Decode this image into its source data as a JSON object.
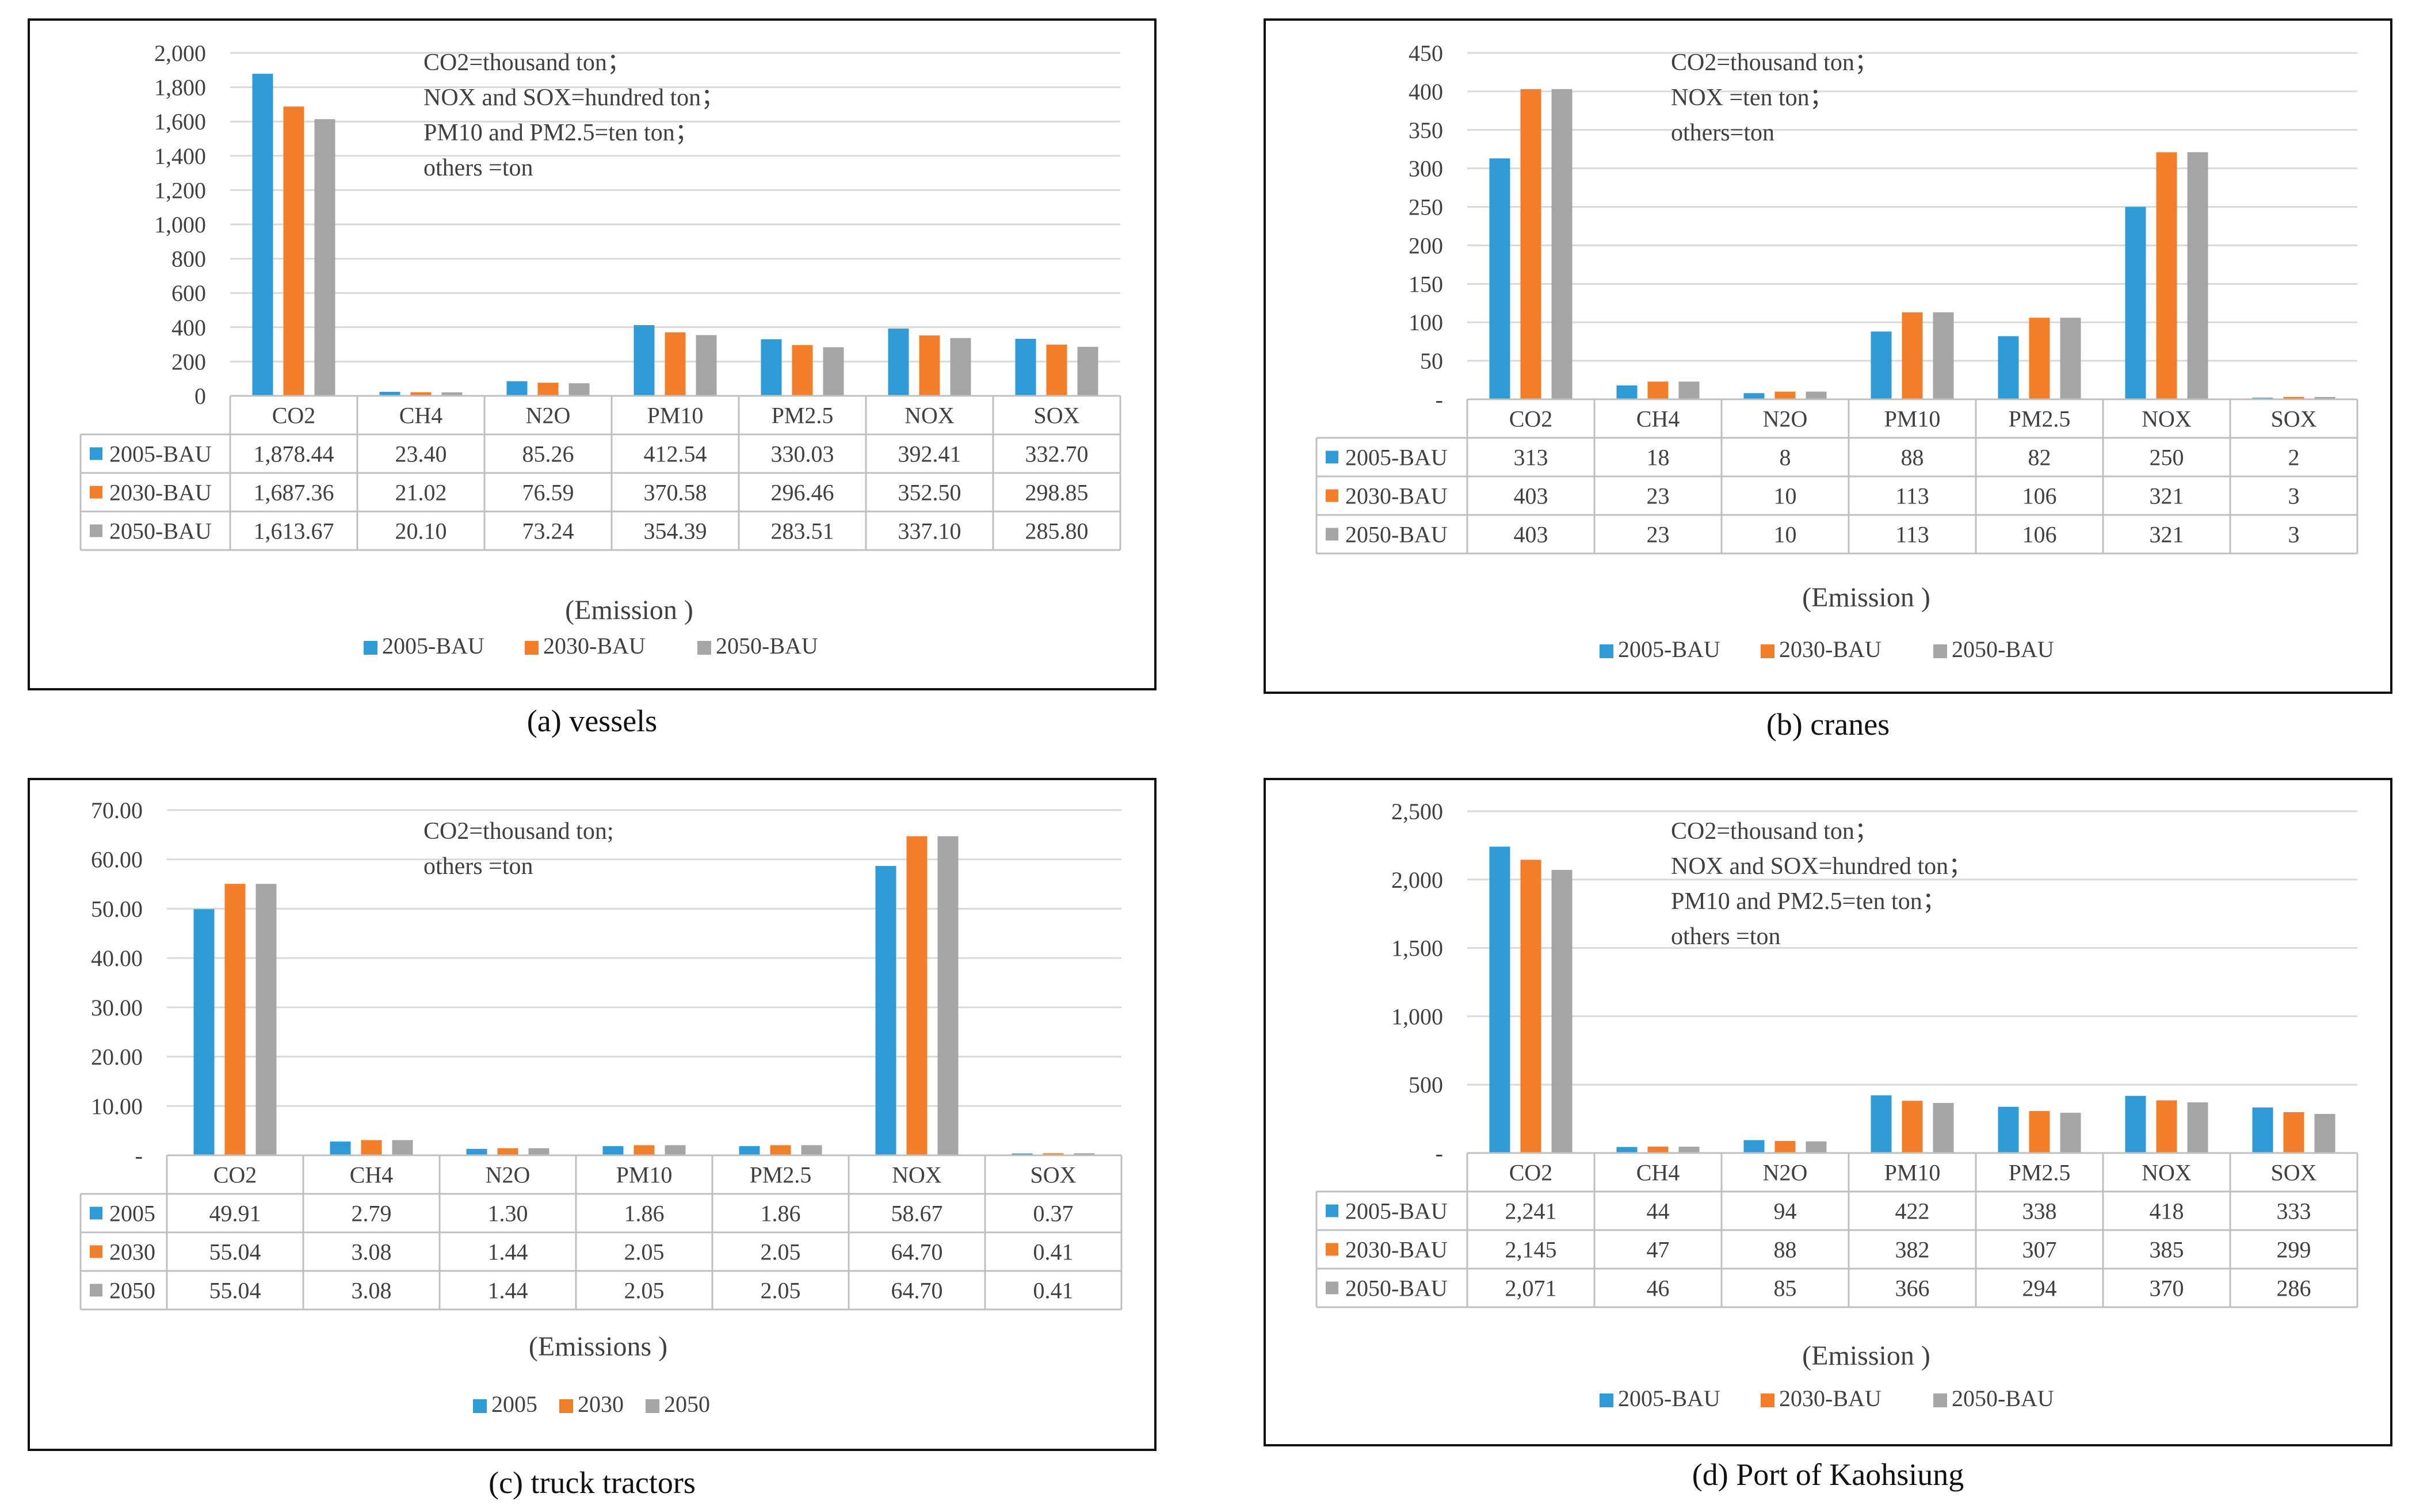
{
  "colors": {
    "s0": "#2E9BD6",
    "s1": "#F27E2A",
    "s2": "#A5A5A5",
    "grid": "#D9D9D9",
    "axis": "#BFBFBF",
    "text": "#404040"
  },
  "chart_data": [
    {
      "type": "bar",
      "caption": "(a) vessels",
      "categories": [
        "CO2",
        "CH4",
        "N2O",
        "PM10",
        "PM2.5",
        "NOX",
        "SOX"
      ],
      "series": [
        {
          "name": "2005-BAU",
          "values": [
            1878.44,
            23.4,
            85.26,
            412.54,
            330.03,
            392.41,
            332.7
          ],
          "labels": [
            "1,878.44",
            "23.40",
            "85.26",
            "412.54",
            "330.03",
            "392.41",
            "332.70"
          ]
        },
        {
          "name": "2030-BAU",
          "values": [
            1687.36,
            21.02,
            76.59,
            370.58,
            296.46,
            352.5,
            298.85
          ],
          "labels": [
            "1,687.36",
            "21.02",
            "76.59",
            "370.58",
            "296.46",
            "352.50",
            "298.85"
          ]
        },
        {
          "name": "2050-BAU",
          "values": [
            1613.67,
            20.1,
            73.24,
            354.39,
            283.51,
            337.1,
            285.8
          ],
          "labels": [
            "1,613.67",
            "20.10",
            "73.24",
            "354.39",
            "283.51",
            "337.10",
            "285.80"
          ]
        }
      ],
      "ylim": [
        0,
        2000
      ],
      "yticks": [
        0,
        200,
        400,
        600,
        800,
        1000,
        1200,
        1400,
        1600,
        1800,
        2000
      ],
      "ytick_labels": [
        "0",
        "200",
        "400",
        "600",
        "800",
        "1,000",
        "1,200",
        "1,400",
        "1,600",
        "1,800",
        "2,000"
      ],
      "xlabel": "(Emission  )",
      "annotation": [
        "CO2=thousand ton；",
        "NOX and SOX=hundred ton；",
        "PM10  and  PM2.5=ten  ton；",
        "others =ton"
      ],
      "legend": "bottom-center"
    },
    {
      "type": "bar",
      "caption": "(b) cranes",
      "categories": [
        "CO2",
        "CH4",
        "N2O",
        "PM10",
        "PM2.5",
        "NOX",
        "SOX"
      ],
      "series": [
        {
          "name": "2005-BAU",
          "values": [
            313,
            18,
            8,
            88,
            82,
            250,
            2
          ],
          "labels": [
            "313",
            "18",
            "8",
            "88",
            "82",
            "250",
            "2"
          ]
        },
        {
          "name": "2030-BAU",
          "values": [
            403,
            23,
            10,
            113,
            106,
            321,
            3
          ],
          "labels": [
            "403",
            "23",
            "10",
            "113",
            "106",
            "321",
            "3"
          ]
        },
        {
          "name": "2050-BAU",
          "values": [
            403,
            23,
            10,
            113,
            106,
            321,
            3
          ],
          "labels": [
            "403",
            "23",
            "10",
            "113",
            "106",
            "321",
            "3"
          ]
        }
      ],
      "ylim": [
        0,
        450
      ],
      "yticks": [
        0,
        50,
        100,
        150,
        200,
        250,
        300,
        350,
        400,
        450
      ],
      "ytick_labels": [
        "-",
        "50",
        "100",
        "150",
        "200",
        "250",
        "300",
        "350",
        "400",
        "450"
      ],
      "xlabel": "(Emission  )",
      "annotation": [
        "CO2=thousand ton；",
        "NOX  =ten ton；",
        "others=ton"
      ],
      "legend": "bottom-center"
    },
    {
      "type": "bar",
      "caption": "(c) truck tractors",
      "categories": [
        "CO2",
        "CH4",
        "N2O",
        "PM10",
        "PM2.5",
        "NOX",
        "SOX"
      ],
      "series": [
        {
          "name": "2005",
          "values": [
            49.91,
            2.79,
            1.3,
            1.86,
            1.86,
            58.67,
            0.37
          ],
          "labels": [
            "49.91",
            "2.79",
            "1.30",
            "1.86",
            "1.86",
            "58.67",
            "0.37"
          ]
        },
        {
          "name": "2030",
          "values": [
            55.04,
            3.08,
            1.44,
            2.05,
            2.05,
            64.7,
            0.41
          ],
          "labels": [
            "55.04",
            "3.08",
            "1.44",
            "2.05",
            "2.05",
            "64.70",
            "0.41"
          ]
        },
        {
          "name": "2050",
          "values": [
            55.04,
            3.08,
            1.44,
            2.05,
            2.05,
            64.7,
            0.41
          ],
          "labels": [
            "55.04",
            "3.08",
            "1.44",
            "2.05",
            "2.05",
            "64.70",
            "0.41"
          ]
        }
      ],
      "ylim": [
        0,
        70
      ],
      "yticks": [
        0,
        10,
        20,
        30,
        40,
        50,
        60,
        70
      ],
      "ytick_labels": [
        "-",
        "10.00",
        "20.00",
        "30.00",
        "40.00",
        "50.00",
        "60.00",
        "70.00"
      ],
      "xlabel": "(Emissions  )",
      "annotation": [
        "CO2=thousand ton;",
        " others =ton"
      ],
      "legend": "bottom-center"
    },
    {
      "type": "bar",
      "caption": "(d) Port of Kaohsiung",
      "categories": [
        "CO2",
        "CH4",
        "N2O",
        "PM10",
        "PM2.5",
        "NOX",
        "SOX"
      ],
      "series": [
        {
          "name": "2005-BAU",
          "values": [
            2241,
            44,
            94,
            422,
            338,
            418,
            333
          ],
          "labels": [
            "2,241",
            "44",
            "94",
            "422",
            "338",
            "418",
            "333"
          ]
        },
        {
          "name": "2030-BAU",
          "values": [
            2145,
            47,
            88,
            382,
            307,
            385,
            299
          ],
          "labels": [
            "2,145",
            "47",
            "88",
            "382",
            "307",
            "385",
            "299"
          ]
        },
        {
          "name": "2050-BAU",
          "values": [
            2071,
            46,
            85,
            366,
            294,
            370,
            286
          ],
          "labels": [
            "2,071",
            "46",
            "85",
            "366",
            "294",
            "370",
            "286"
          ]
        }
      ],
      "ylim": [
        0,
        2500
      ],
      "yticks": [
        0,
        500,
        1000,
        1500,
        2000,
        2500
      ],
      "ytick_labels": [
        "-",
        "500",
        "1,000",
        "1,500",
        "2,000",
        "2,500"
      ],
      "xlabel": "(Emission  )",
      "annotation": [
        "CO2=thousand ton；",
        "NOX and SOX=hundred ton；",
        "PM10  and  PM2.5=ten  ton；",
        "others =ton"
      ],
      "legend": "bottom-center"
    }
  ]
}
